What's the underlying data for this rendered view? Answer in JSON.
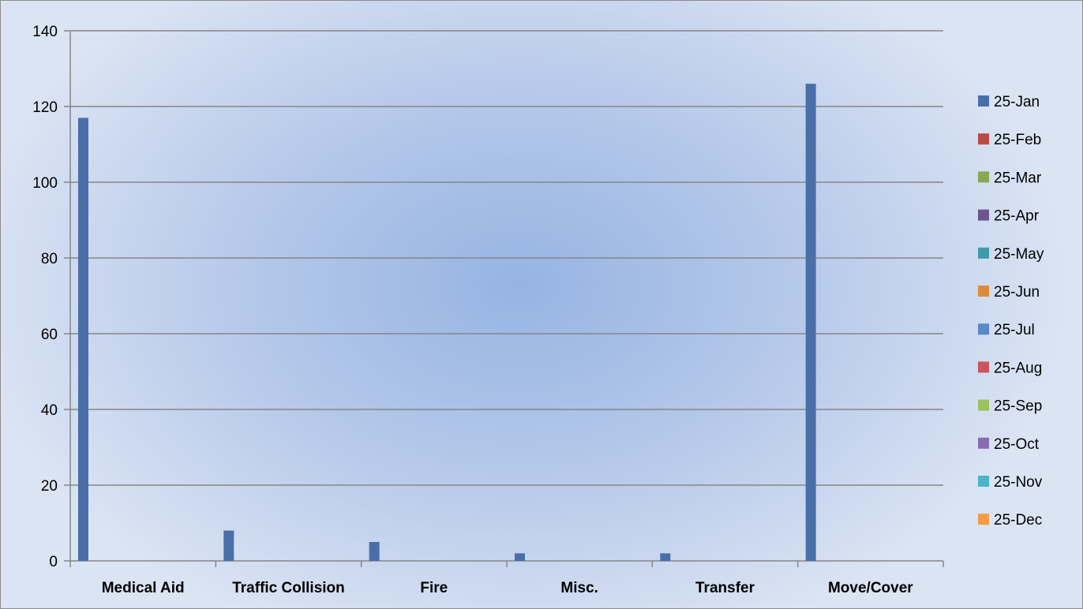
{
  "chart_data": {
    "type": "bar",
    "title": "",
    "xlabel": "",
    "ylabel": "",
    "categories": [
      "Medical Aid",
      "Traffic Collision",
      "Fire",
      "Misc.",
      "Transfer",
      "Move/Cover"
    ],
    "ylim": [
      0,
      140
    ],
    "yticks": [
      "0",
      "20",
      "40",
      "60",
      "80",
      "100",
      "120",
      "140"
    ],
    "grid": true,
    "legend_position": "right",
    "series": [
      {
        "name": "25-Jan",
        "color": "#4a6fa8",
        "values": [
          117,
          8,
          5,
          2,
          2,
          126
        ]
      },
      {
        "name": "25-Feb",
        "color": "#b84a47",
        "values": [
          0,
          0,
          0,
          0,
          0,
          0
        ]
      },
      {
        "name": "25-Mar",
        "color": "#8aa852",
        "values": [
          0,
          0,
          0,
          0,
          0,
          0
        ]
      },
      {
        "name": "25-Apr",
        "color": "#6e558f",
        "values": [
          0,
          0,
          0,
          0,
          0,
          0
        ]
      },
      {
        "name": "25-May",
        "color": "#3f9aaa",
        "values": [
          0,
          0,
          0,
          0,
          0,
          0
        ]
      },
      {
        "name": "25-Jun",
        "color": "#dc8a3c",
        "values": [
          0,
          0,
          0,
          0,
          0,
          0
        ]
      },
      {
        "name": "25-Jul",
        "color": "#5a88c8",
        "values": [
          0,
          0,
          0,
          0,
          0,
          0
        ]
      },
      {
        "name": "25-Aug",
        "color": "#c9565a",
        "values": [
          0,
          0,
          0,
          0,
          0,
          0
        ]
      },
      {
        "name": "25-Sep",
        "color": "#9bc25a",
        "values": [
          0,
          0,
          0,
          0,
          0,
          0
        ]
      },
      {
        "name": "25-Oct",
        "color": "#8a6bb0",
        "values": [
          0,
          0,
          0,
          0,
          0,
          0
        ]
      },
      {
        "name": "25-Nov",
        "color": "#4db3c9",
        "values": [
          0,
          0,
          0,
          0,
          0,
          0
        ]
      },
      {
        "name": "25-Dec",
        "color": "#f59a45",
        "values": [
          0,
          0,
          0,
          0,
          0,
          0
        ]
      }
    ]
  }
}
